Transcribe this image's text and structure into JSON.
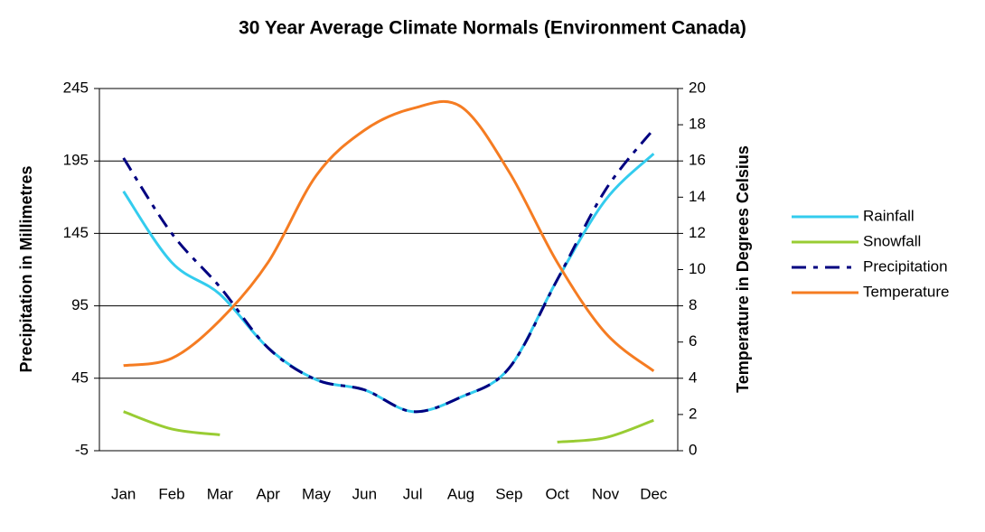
{
  "chart_data": {
    "type": "line",
    "title": "30 Year Average Climate Normals (Environment Canada)",
    "y_label": "Precipitation in Millimetres",
    "y2_label": "Temperature in Degrees Celsius",
    "categories": [
      "Jan",
      "Feb",
      "Mar",
      "Apr",
      "May",
      "Jun",
      "Jul",
      "Aug",
      "Sep",
      "Oct",
      "Nov",
      "Dec"
    ],
    "series": [
      {
        "name": "Rainfall",
        "color": "#33ccee",
        "values": [
          174,
          125,
          103,
          66,
          44,
          37,
          22,
          32,
          52,
          113,
          168,
          200
        ]
      },
      {
        "name": "Snowfall",
        "color": "#99cc33",
        "values": [
          22,
          10,
          6,
          null,
          null,
          null,
          null,
          null,
          null,
          1,
          4,
          16
        ]
      },
      {
        "name": "Precipitation",
        "color": "#000080",
        "dashed": true,
        "values": [
          197,
          145,
          108,
          66,
          44,
          37,
          22,
          32,
          52,
          113,
          175,
          217
        ]
      },
      {
        "name": "Temperature",
        "color": "#f57c22",
        "axis": "y2",
        "values": [
          4.7,
          5.1,
          7.2,
          10.4,
          15.2,
          17.7,
          18.9,
          19.0,
          15.4,
          10.4,
          6.5,
          4.4
        ]
      }
    ],
    "ylim": [
      -5,
      245
    ],
    "yticks": [
      -5,
      45,
      95,
      145,
      195,
      245
    ],
    "y2lim": [
      0,
      20
    ],
    "y2ticks": [
      0,
      2,
      4,
      6,
      8,
      10,
      12,
      14,
      16,
      18,
      20
    ],
    "grid": true,
    "legend": "right"
  }
}
